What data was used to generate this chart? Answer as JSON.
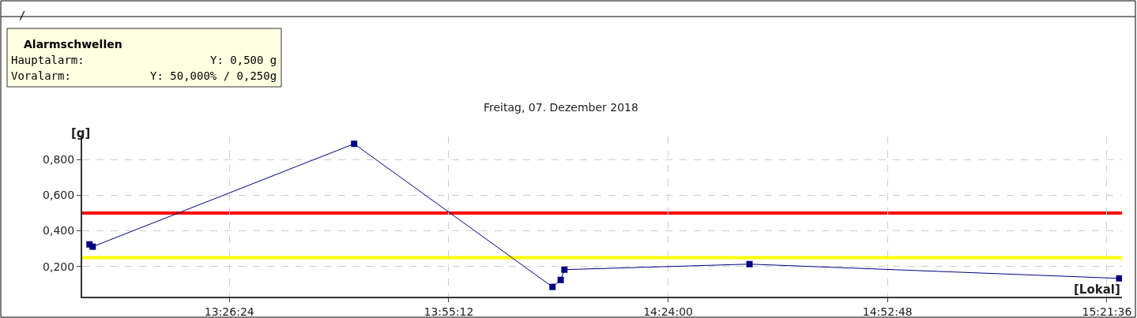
{
  "chart_data": {
    "type": "line",
    "title": "Freitag, 07. Dezember 2018",
    "xlabel": "[Lokal]",
    "ylabel": "[g]",
    "x": [
      13.134,
      13.141,
      13.713,
      14.147,
      14.165,
      14.173,
      14.578,
      15.387
    ],
    "series": [
      {
        "color": "#000080",
        "values": [
          0.324,
          0.311,
          0.889,
          0.085,
          0.124,
          0.182,
          0.213,
          0.133
        ]
      }
    ],
    "xlim": [
      13.118,
      15.393
    ],
    "xticks": [
      {
        "value": 13.44,
        "label": "13:26:24"
      },
      {
        "value": 13.92,
        "label": "13:55:12"
      },
      {
        "value": 14.4,
        "label": "14:24:00"
      },
      {
        "value": 14.88,
        "label": "14:52:48"
      },
      {
        "value": 15.36,
        "label": "15:21:36"
      }
    ],
    "ylim": [
      0.03,
      0.93
    ],
    "yticks": [
      {
        "value": 0.2,
        "label": "0,200"
      },
      {
        "value": 0.4,
        "label": "0,400"
      },
      {
        "value": 0.6,
        "label": "0,600"
      },
      {
        "value": 0.8,
        "label": "0,800"
      }
    ],
    "ref_lines": [
      {
        "axis": "y",
        "value": 0.5,
        "color": "#ff0000"
      },
      {
        "axis": "y",
        "value": 0.25,
        "color": "#ffff00"
      }
    ],
    "annotations": [
      "/",
      "Alarmschwellen",
      "Hauptalarm:",
      "Y: 0,500 g",
      "Voralarm:",
      "Y: 50,000% / 0,250g"
    ],
    "grid": true,
    "marker": "square",
    "line_style": "solid"
  }
}
